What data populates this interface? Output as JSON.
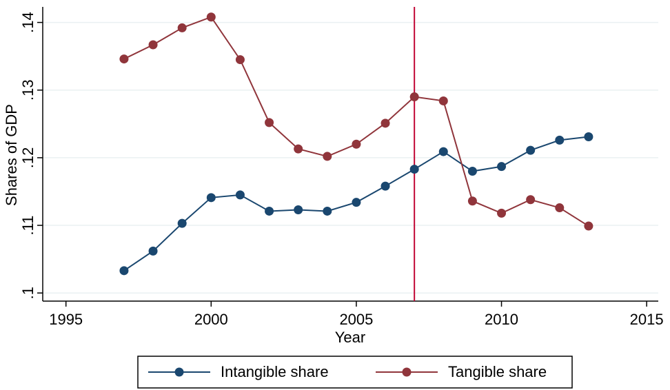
{
  "chart_data": {
    "type": "line",
    "x_label": "Year",
    "y_label": "Shares of GDP",
    "x": [
      1997,
      1998,
      1999,
      2000,
      2001,
      2002,
      2003,
      2004,
      2005,
      2006,
      2007,
      2008,
      2009,
      2010,
      2011,
      2012,
      2013
    ],
    "series": [
      {
        "name": "Intangible share",
        "color": "#1a476f",
        "values": [
          0.1033,
          0.1062,
          0.1103,
          0.1141,
          0.1145,
          0.1121,
          0.1123,
          0.1121,
          0.1134,
          0.1158,
          0.1183,
          0.1209,
          0.118,
          0.1187,
          0.1211,
          0.1226,
          0.1231
        ]
      },
      {
        "name": "Tangible share",
        "color": "#90353b",
        "values": [
          0.1346,
          0.1367,
          0.1392,
          0.1408,
          0.1345,
          0.1252,
          0.1213,
          0.1202,
          0.122,
          0.1251,
          0.129,
          0.1284,
          0.1136,
          0.1118,
          0.1138,
          0.1126,
          0.1099
        ]
      }
    ],
    "vline": 2007,
    "vline_color": "#c10534",
    "xlim": [
      1994.2,
      2015.4
    ],
    "xticks": [
      1995,
      2000,
      2005,
      2010,
      2015
    ],
    "ylim": [
      0.0988,
      0.1423
    ],
    "yticks": [
      {
        "value": 0.1,
        "label": ".1"
      },
      {
        "value": 0.11,
        "label": ".11"
      },
      {
        "value": 0.12,
        "label": ".12"
      },
      {
        "value": 0.13,
        "label": ".13"
      },
      {
        "value": 0.14,
        "label": ".14"
      }
    ],
    "grid": true,
    "legend": "bottom"
  }
}
